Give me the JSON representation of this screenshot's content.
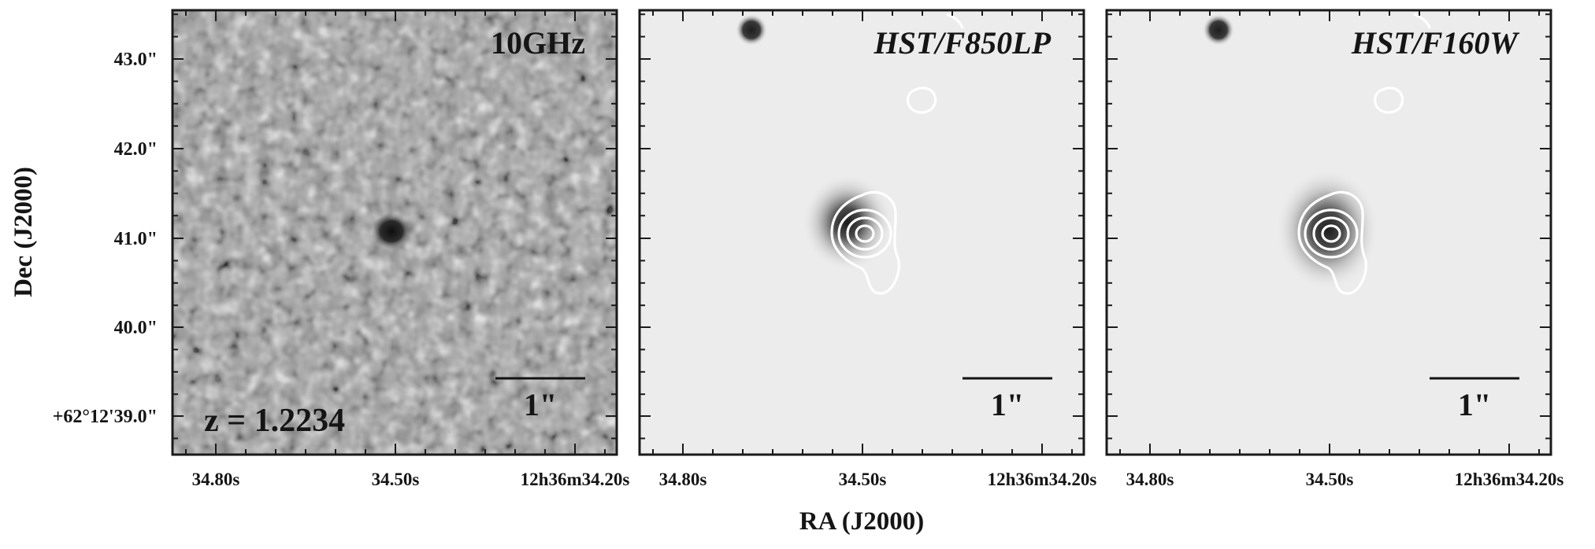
{
  "figure": {
    "y_axis_title": "Dec (J2000)",
    "x_axis_title": "RA (J2000)",
    "y_ticks": [
      "43.0\"",
      "42.0\"",
      "41.0\"",
      "40.0\"",
      "+62°12'39.0\""
    ],
    "x_ticks": [
      "34.80s",
      "34.50s",
      "12h36m34.20s"
    ]
  },
  "panels": [
    {
      "label": "10GHz",
      "italic": false,
      "scale_bar": "1\"",
      "note": "z = 1.2234",
      "background": "noise-gray"
    },
    {
      "label": "HST/F850LP",
      "italic": true,
      "scale_bar": "1\"",
      "note": "",
      "background": "light-gray"
    },
    {
      "label": "HST/F160W",
      "italic": true,
      "scale_bar": "1\"",
      "note": "",
      "background": "light-gray"
    }
  ],
  "colors": {
    "contour": "#ffffff",
    "frame": "#1a1a1a",
    "hst_bg": "#ececec",
    "radio_bg": "#9a9a9a"
  }
}
